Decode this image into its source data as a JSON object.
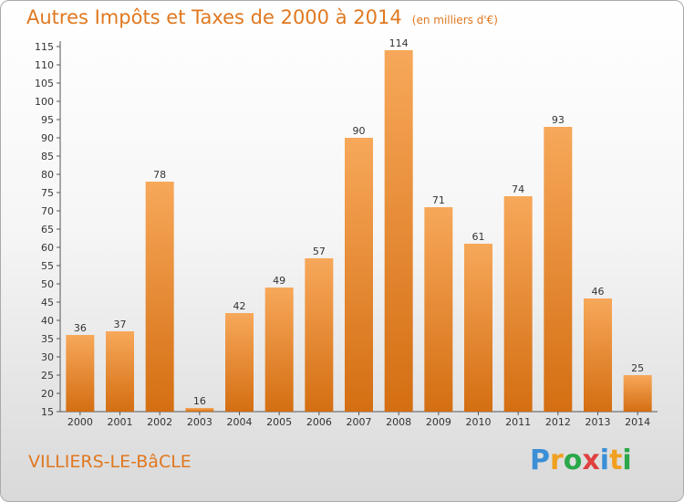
{
  "header": {
    "title": "Autres Impôts et Taxes de 2000 à 2014",
    "unit": "(en milliers d'€)"
  },
  "footer": {
    "commune": "VILLIERS-LE-BâCLE",
    "brand_letters": [
      "P",
      "r",
      "o",
      "x",
      "i",
      "t",
      "i"
    ],
    "brand_colors": [
      "#3a8fd6",
      "#f0a020",
      "#2aa84a",
      "#e04040",
      "#3a8fd6",
      "#f0a020",
      "#2aa84a"
    ]
  },
  "colors": {
    "bar_light": "#f7a85a",
    "bar_dark": "#d46e12",
    "text": "#333333",
    "title": "#e07820"
  },
  "chart_data": {
    "type": "bar",
    "title": "Autres Impôts et Taxes de 2000 à 2014",
    "subtitle": "(en milliers d'€)",
    "xlabel": "",
    "ylabel": "",
    "categories": [
      "2000",
      "2001",
      "2002",
      "2003",
      "2004",
      "2005",
      "2006",
      "2007",
      "2008",
      "2009",
      "2010",
      "2011",
      "2012",
      "2013",
      "2014"
    ],
    "values": [
      36,
      37,
      78,
      16,
      42,
      49,
      57,
      90,
      114,
      71,
      61,
      74,
      93,
      46,
      25
    ],
    "ylim": [
      15,
      115
    ],
    "yticks": [
      15,
      20,
      25,
      30,
      35,
      40,
      45,
      50,
      55,
      60,
      65,
      70,
      75,
      80,
      85,
      90,
      95,
      100,
      105,
      110,
      115
    ],
    "grid": false,
    "legend": "none"
  }
}
